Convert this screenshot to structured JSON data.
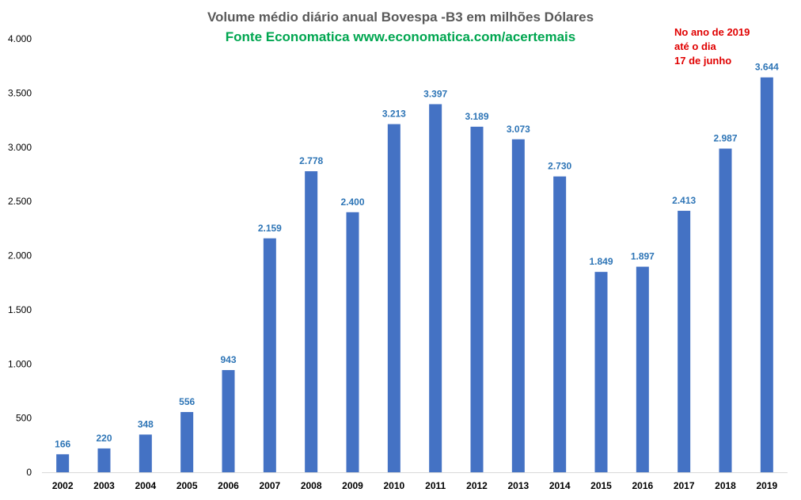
{
  "chart_data": {
    "type": "bar",
    "title": "Volume médio diário anual  Bovespa -B3 em milhões Dólares",
    "subtitle": "Fonte Economatica www.economatica.com/acertemais",
    "annotation_lines": [
      "No ano de 2019",
      "até o dia",
      "17 de junho"
    ],
    "categories": [
      "2002",
      "2003",
      "2004",
      "2005",
      "2006",
      "2007",
      "2008",
      "2009",
      "2010",
      "2011",
      "2012",
      "2013",
      "2014",
      "2015",
      "2016",
      "2017",
      "2018",
      "2019"
    ],
    "values": [
      166,
      220,
      348,
      556,
      943,
      2159,
      2778,
      2400,
      3213,
      3397,
      3189,
      3073,
      2730,
      1849,
      1897,
      2413,
      2987,
      3644
    ],
    "data_labels": [
      "166",
      "220",
      "348",
      "556",
      "943",
      "2.159",
      "2.778",
      "2.400",
      "3.213",
      "3.397",
      "3.189",
      "3.073",
      "2.730",
      "1.849",
      "1.897",
      "2.413",
      "2.987",
      "3.644"
    ],
    "y_ticks": [
      0,
      500,
      1000,
      1500,
      2000,
      2500,
      3000,
      3500,
      4000
    ],
    "y_tick_labels": [
      "0",
      "500",
      "1.000",
      "1.500",
      "2.000",
      "2.500",
      "3.000",
      "3.500",
      "4.000"
    ],
    "ylim": [
      0,
      4000
    ],
    "xlabel": "",
    "ylabel": "",
    "grid": false,
    "legend": "none",
    "colors": {
      "bar": "#4472C4",
      "data_label": "#2E75B6",
      "title": "#595959",
      "subtitle": "#00A650",
      "annotation": "#E00000",
      "axis_text": "#000000"
    }
  }
}
